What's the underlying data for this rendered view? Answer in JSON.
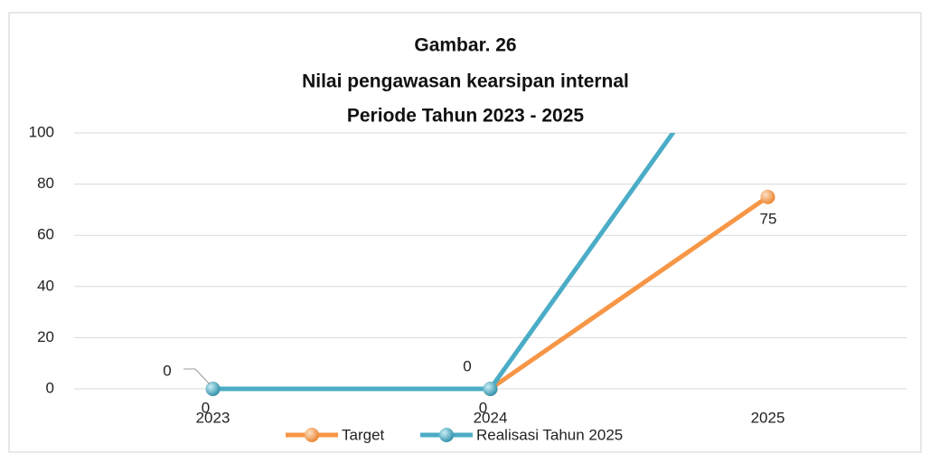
{
  "chart_data": {
    "type": "line",
    "title": [
      "Gambar. 26",
      "Nilai pengawasan kearsipan internal",
      "Periode Tahun 2023 - 2025"
    ],
    "categories": [
      "2023",
      "2024",
      "2025"
    ],
    "series": [
      {
        "name": "Target",
        "color": "#f79646",
        "values": [
          0,
          0,
          75
        ]
      },
      {
        "name": "Realisasi Tahun 2025",
        "color": "#4bacc6",
        "values": [
          0,
          0,
          152
        ]
      }
    ],
    "ylim": [
      0,
      100
    ],
    "yticks": [
      0,
      20,
      40,
      60,
      80,
      100
    ],
    "grid": true,
    "legend": "bottom"
  }
}
